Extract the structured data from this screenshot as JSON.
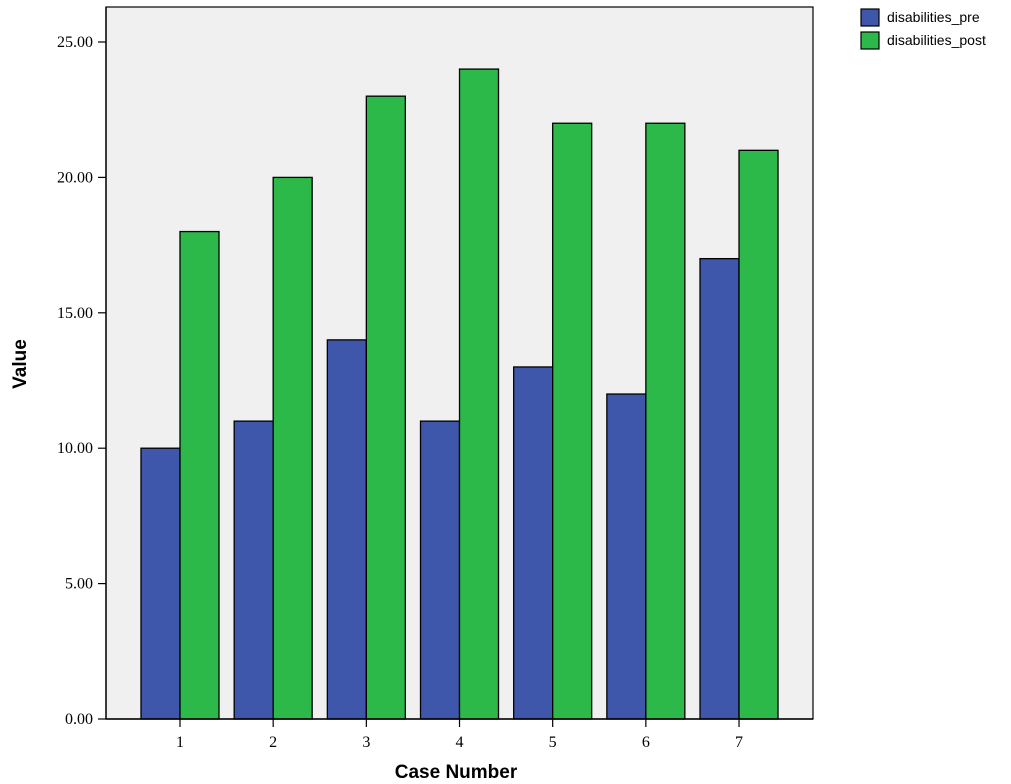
{
  "chart_data": {
    "type": "bar",
    "xlabel": "Case Number",
    "ylabel": "Value",
    "categories": [
      "1",
      "2",
      "3",
      "4",
      "5",
      "6",
      "7"
    ],
    "series": [
      {
        "name": "disabilities_pre",
        "color": "#3f57ab",
        "values": [
          10,
          11,
          14,
          11,
          13,
          12,
          17
        ]
      },
      {
        "name": "disabilities_post",
        "color": "#2db84a",
        "values": [
          18,
          20,
          23,
          24,
          22,
          22,
          21
        ]
      }
    ],
    "ylim": [
      0,
      25
    ],
    "yticks": [
      "0.00",
      "5.00",
      "10.00",
      "15.00",
      "20.00",
      "25.00"
    ],
    "ytick_values": [
      0,
      5,
      10,
      15,
      20,
      25
    ],
    "plot_background": "#f0f0f0",
    "grid": false,
    "legend_position": "top-right-outside"
  }
}
